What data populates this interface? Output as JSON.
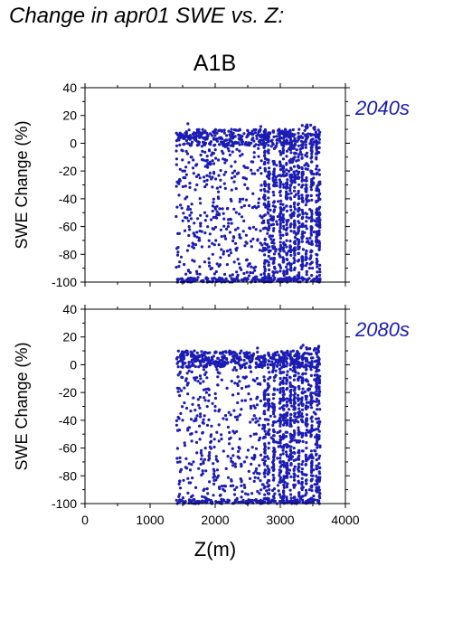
{
  "title": "Change in apr01 SWE vs. Z:",
  "subtitle": "A1B",
  "colors": {
    "points": "#1c1cb4",
    "panel_label": "#1c1cb4",
    "axis": "#000000"
  },
  "chart_data": [
    {
      "type": "scatter",
      "panel_label": "2040s",
      "ylabel": "SWE Change (%)",
      "xlabel": "",
      "xlim": [
        0,
        4000
      ],
      "ylim": [
        -100,
        40
      ],
      "yticks": [
        -100,
        -80,
        -60,
        -40,
        -20,
        0,
        20,
        40
      ],
      "xticks": [
        0,
        1000,
        2000,
        3000,
        4000
      ],
      "show_x_tick_labels": false,
      "grid": false,
      "x_range_of_points": [
        1400,
        3600
      ],
      "y_range_of_points": [
        -100,
        14
      ],
      "series": [
        {
          "points": [
            [
              1420,
              -100
            ],
            [
              1430,
              -75
            ],
            [
              1450,
              -65
            ],
            [
              1480,
              5
            ],
            [
              1500,
              -20
            ],
            [
              1520,
              -100
            ],
            [
              1540,
              -40
            ],
            [
              1560,
              8
            ],
            [
              1580,
              14
            ],
            [
              1600,
              -60
            ],
            [
              1620,
              -100
            ],
            [
              1640,
              -10
            ],
            [
              1680,
              -85
            ],
            [
              1700,
              3
            ],
            [
              1720,
              -30
            ],
            [
              1760,
              -70
            ],
            [
              1800,
              7
            ],
            [
              1840,
              -50
            ],
            [
              1880,
              -100
            ],
            [
              1900,
              -15
            ],
            [
              1950,
              -90
            ],
            [
              2000,
              8
            ],
            [
              2050,
              -35
            ],
            [
              2100,
              -100
            ],
            [
              2150,
              2
            ],
            [
              2200,
              -60
            ],
            [
              2250,
              10
            ],
            [
              2300,
              -20
            ],
            [
              2350,
              -95
            ],
            [
              2400,
              5
            ],
            [
              2450,
              -45
            ],
            [
              2500,
              9
            ],
            [
              2550,
              -100
            ],
            [
              2600,
              -10
            ],
            [
              2650,
              -70
            ],
            [
              2700,
              12
            ],
            [
              2750,
              -100
            ],
            [
              2780,
              -30
            ],
            [
              2800,
              4
            ],
            [
              2850,
              -55
            ],
            [
              2900,
              -85
            ],
            [
              2950,
              0
            ],
            [
              3000,
              -100
            ],
            [
              3050,
              8
            ],
            [
              3100,
              -40
            ],
            [
              3150,
              -75
            ],
            [
              3200,
              5
            ],
            [
              3250,
              -20
            ],
            [
              3300,
              -60
            ],
            [
              3350,
              7
            ],
            [
              3400,
              -35
            ],
            [
              3450,
              -90
            ],
            [
              3500,
              3
            ],
            [
              3550,
              -50
            ],
            [
              3600,
              -100
            ]
          ]
        }
      ]
    },
    {
      "type": "scatter",
      "panel_label": "2080s",
      "ylabel": "SWE Change (%)",
      "xlabel": "Z(m)",
      "xlim": [
        0,
        4000
      ],
      "ylim": [
        -100,
        40
      ],
      "yticks": [
        -100,
        -80,
        -60,
        -40,
        -20,
        0,
        20,
        40
      ],
      "xticks": [
        0,
        1000,
        2000,
        3000,
        4000
      ],
      "show_x_tick_labels": true,
      "grid": false,
      "x_range_of_points": [
        1400,
        3600
      ],
      "y_range_of_points": [
        -100,
        14
      ],
      "series": [
        {
          "points": [
            [
              1420,
              -100
            ],
            [
              1440,
              -95
            ],
            [
              1460,
              -70
            ],
            [
              1500,
              -40
            ],
            [
              1520,
              -100
            ],
            [
              1560,
              -10
            ],
            [
              1580,
              8
            ],
            [
              1600,
              -85
            ],
            [
              1640,
              -55
            ],
            [
              1680,
              10
            ],
            [
              1700,
              -100
            ],
            [
              1740,
              -25
            ],
            [
              1800,
              -95
            ],
            [
              1850,
              -60
            ],
            [
              1900,
              5
            ],
            [
              1950,
              -100
            ],
            [
              2000,
              -30
            ],
            [
              2050,
              -80
            ],
            [
              2100,
              -100
            ],
            [
              2150,
              0
            ],
            [
              2200,
              -45
            ],
            [
              2250,
              8
            ],
            [
              2300,
              -90
            ],
            [
              2350,
              -15
            ],
            [
              2400,
              10
            ],
            [
              2450,
              -70
            ],
            [
              2500,
              -100
            ],
            [
              2550,
              -5
            ],
            [
              2600,
              -50
            ],
            [
              2650,
              12
            ],
            [
              2700,
              -100
            ],
            [
              2750,
              -35
            ],
            [
              2800,
              -85
            ],
            [
              2850,
              0
            ],
            [
              2900,
              -60
            ],
            [
              2950,
              -100
            ],
            [
              3000,
              -20
            ],
            [
              3050,
              5
            ],
            [
              3100,
              -75
            ],
            [
              3150,
              -40
            ],
            [
              3200,
              10
            ],
            [
              3250,
              -100
            ],
            [
              3300,
              -55
            ],
            [
              3350,
              14
            ],
            [
              3400,
              -25
            ],
            [
              3450,
              -90
            ],
            [
              3500,
              5
            ],
            [
              3550,
              -65
            ],
            [
              3600,
              -100
            ]
          ]
        }
      ]
    }
  ]
}
